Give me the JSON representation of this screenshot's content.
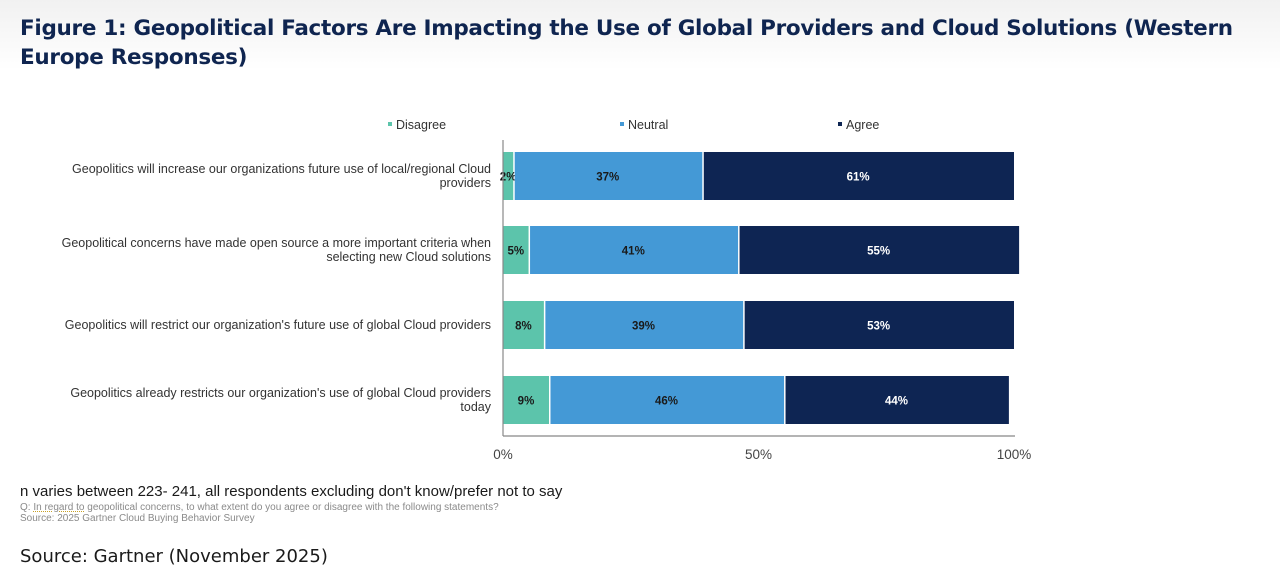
{
  "figure": {
    "title": "Figure 1: Geopolitical Factors Are Impacting the Use of Global Providers and Cloud Solutions (Western Europe Responses)"
  },
  "chart_data": {
    "type": "bar",
    "orientation": "horizontal",
    "stacked": true,
    "title": "",
    "xlabel": "",
    "ylabel": "",
    "xlim": [
      0,
      100
    ],
    "x_ticks": [
      "0%",
      "50%",
      "100%"
    ],
    "grid": false,
    "legend_position": "top",
    "categories": [
      "Geopolitics will increase our organizations future use of local/regional Cloud providers",
      "Geopolitical concerns have made open source a more important criteria when selecting new Cloud solutions",
      "Geopolitics will restrict our organization's future use of global Cloud providers",
      "Geopolitics already restricts our organization's use of global Cloud providers today"
    ],
    "category_lines": [
      [
        "Geopolitics will increase our organizations future use of local/regional Cloud",
        "providers"
      ],
      [
        "Geopolitical concerns have made open source a more important criteria when",
        "selecting new Cloud solutions"
      ],
      [
        "Geopolitics will restrict our organization's future use of global Cloud providers"
      ],
      [
        "Geopolitics already restricts our organization's use of global Cloud providers",
        "today"
      ]
    ],
    "series": [
      {
        "name": "Disagree",
        "color": "#5cc4ab",
        "label_color": "#1a1a1a",
        "values": [
          2,
          5,
          8,
          9
        ]
      },
      {
        "name": "Neutral",
        "color": "#4499d6",
        "label_color": "#1a1a1a",
        "values": [
          37,
          41,
          39,
          46
        ]
      },
      {
        "name": "Agree",
        "color": "#0e2553",
        "label_color": "#ffffff",
        "values": [
          61,
          55,
          53,
          44
        ]
      }
    ],
    "value_suffix": "%"
  },
  "notes": {
    "n_note": "n varies between 223- 241, all respondents excluding don't know/prefer not to say",
    "question_prefix": "Q: ",
    "question_underlined": "In regard to",
    "question_rest": " geopolitical concerns, to what extent do you agree or disagree with the following statements?",
    "survey_source": "Source: 2025 Gartner Cloud Buying Behavior Survey"
  },
  "source": "Source: Gartner (November 2025)"
}
